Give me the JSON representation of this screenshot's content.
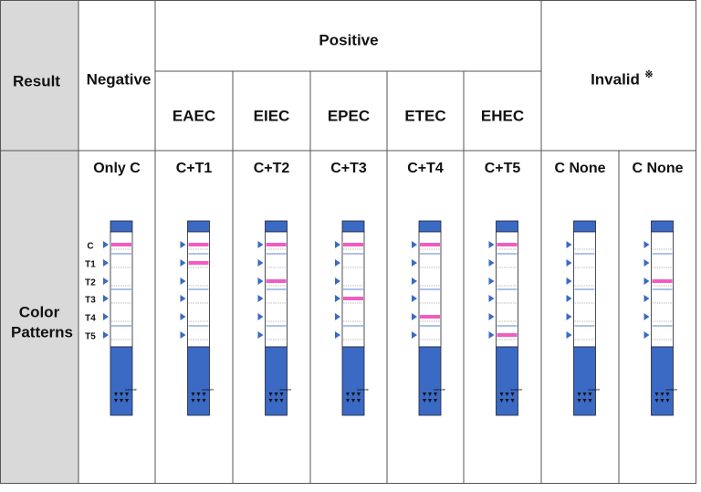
{
  "table": {
    "header": {
      "result": "Result",
      "negative": "Negative",
      "positive": "Positive",
      "invalid": "Invalid",
      "invalid_mark": "※",
      "positive_types": [
        "EAEC",
        "EIEC",
        "EPEC",
        "ETEC",
        "EHEC"
      ]
    },
    "row": {
      "label_lines": [
        "Color",
        "Patterns"
      ],
      "patterns": [
        "Only C",
        "C+T1",
        "C+T2",
        "C+T3",
        "C+T4",
        "C+T5",
        "C None",
        "C None"
      ],
      "strip_labels": [
        "C",
        "T1",
        "T2",
        "T3",
        "T4",
        "T5"
      ],
      "sample_text": "sample"
    }
  }
}
